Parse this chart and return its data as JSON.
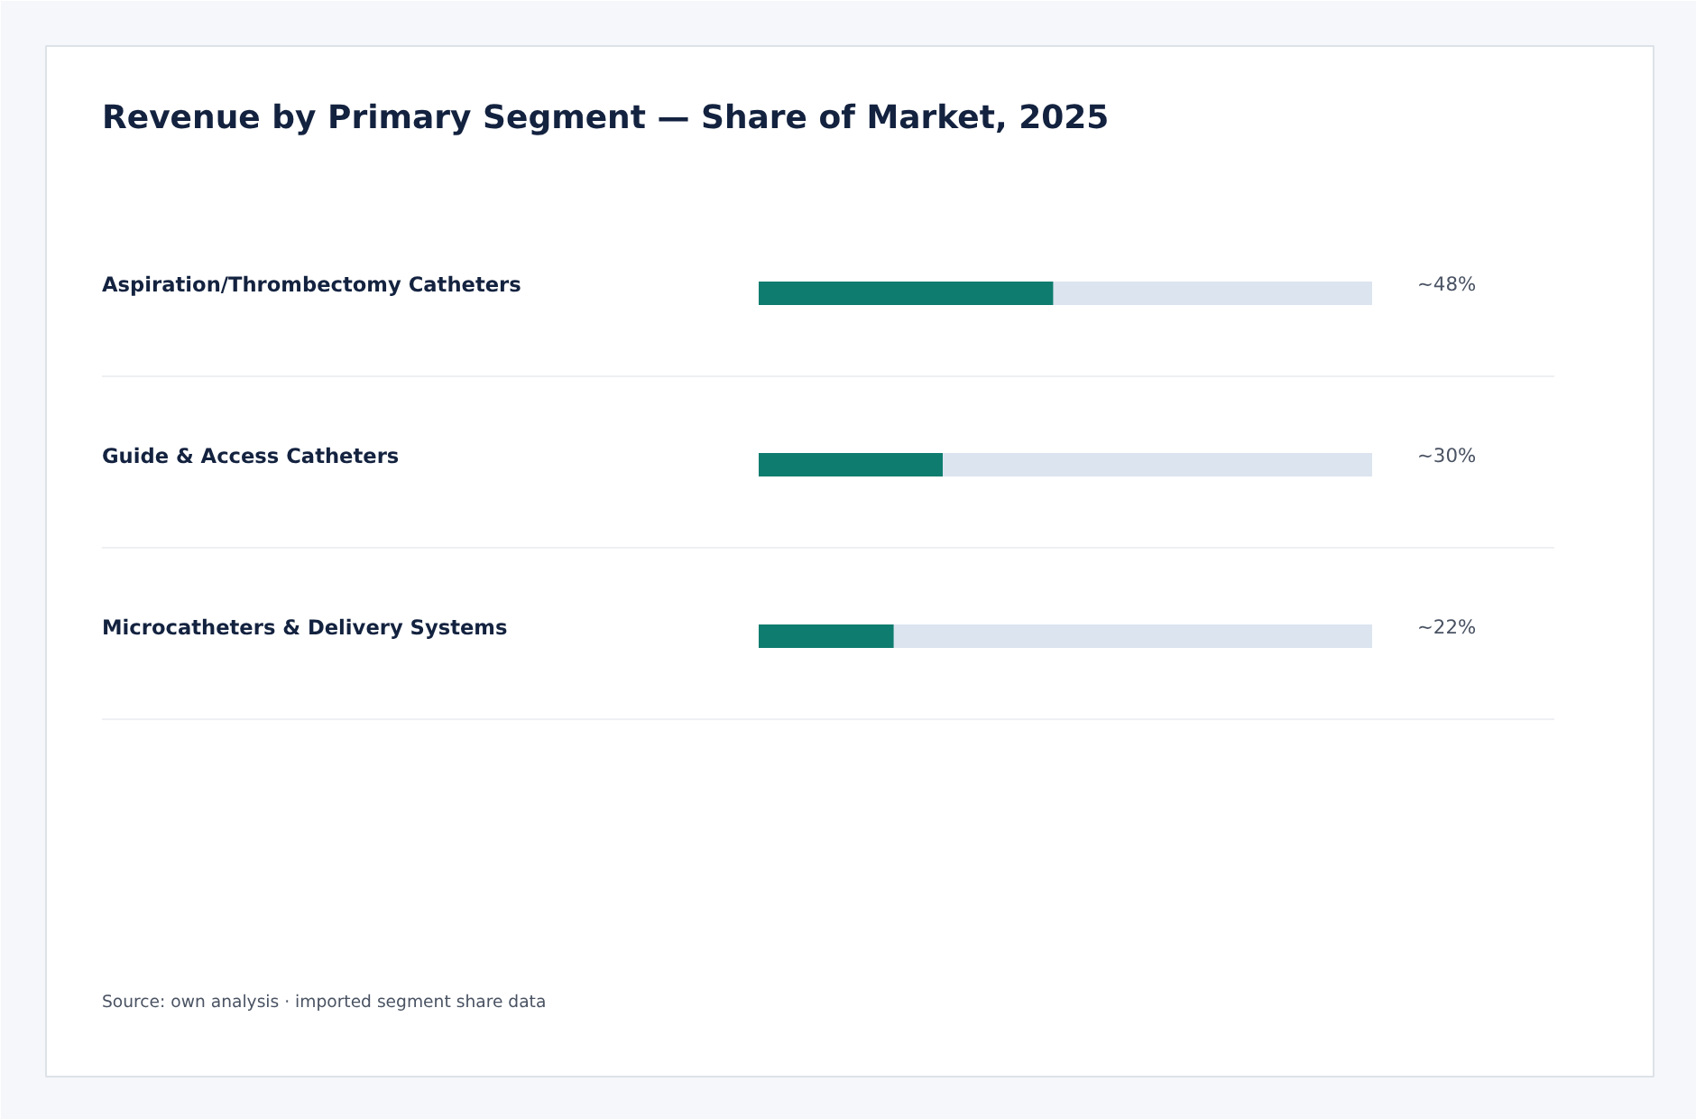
{
  "chart_data": {
    "type": "bar",
    "orientation": "horizontal",
    "title": "Revenue by Primary Segment — Share of Market, 2025",
    "categories": [
      "Aspiration/Thrombectomy Catheters",
      "Guide & Access Catheters",
      "Microcatheters & Delivery Systems"
    ],
    "values": [
      48,
      30,
      22
    ],
    "value_labels": [
      "~48%",
      "~30%",
      "~22%"
    ],
    "color": "#0e7c6e",
    "xlim": [
      0,
      100
    ],
    "tick_labels": false,
    "grid": false,
    "annotations": [
      "Source: own analysis · imported segment share data"
    ]
  }
}
